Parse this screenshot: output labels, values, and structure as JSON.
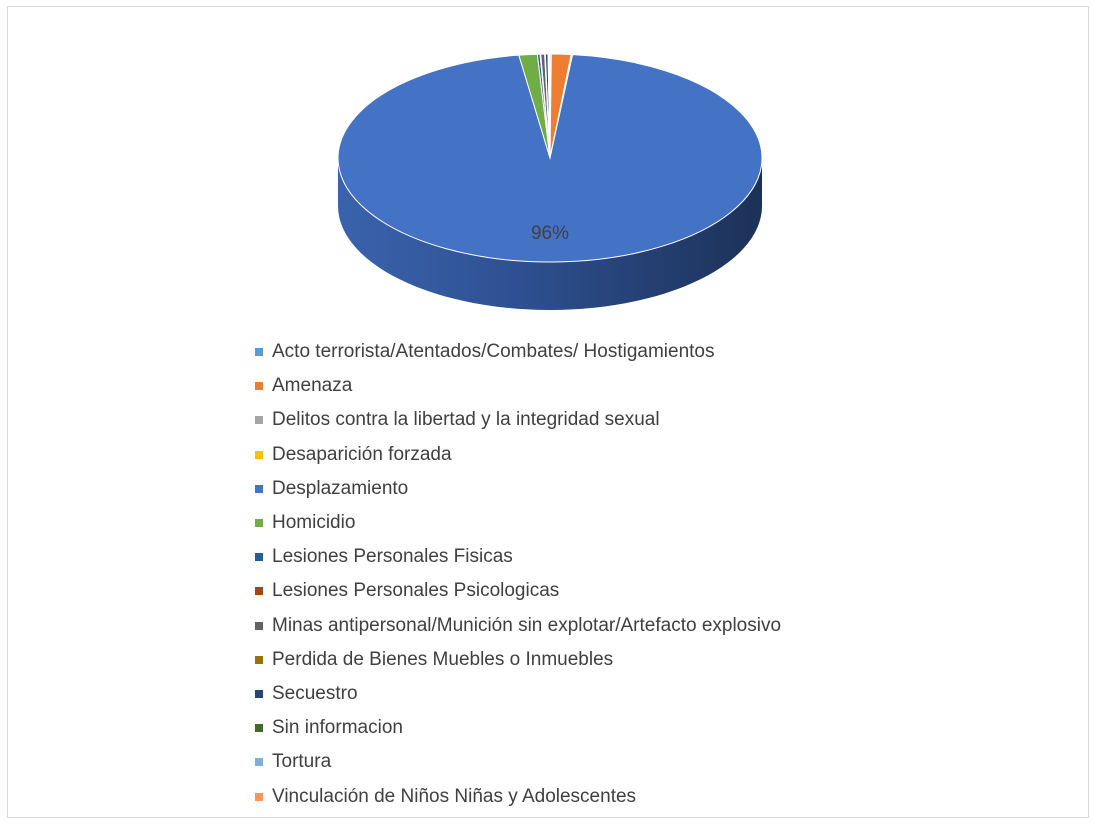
{
  "chart_data": {
    "type": "pie",
    "style": "3d",
    "labels": [
      "Acto terrorista/Atentados/Combates/ Hostigamientos",
      "Amenaza",
      "Delitos contra la libertad y la integridad sexual",
      "Desaparición forzada",
      "Desplazamiento",
      "Homicidio",
      "Lesiones Personales Fisicas",
      "Lesiones Personales Psicologicas",
      "Minas antipersonal/Munición sin explotar/Artefacto explosivo",
      "Perdida de Bienes Muebles o Inmuebles",
      "Secuestro",
      "Sin informacion",
      "Tortura",
      "Vinculación de Niños Niñas y Adolescentes"
    ],
    "values": [
      0.1,
      1.5,
      0.05,
      0.05,
      96,
      1.4,
      0.2,
      0.05,
      0.3,
      0.05,
      0.2,
      0.05,
      0.05,
      0.05
    ],
    "colors": [
      "#5b9bd5",
      "#ed7d31",
      "#a5a5a5",
      "#ffc000",
      "#4472c4",
      "#70ad47",
      "#255e91",
      "#9e480e",
      "#636363",
      "#997300",
      "#264478",
      "#43682b",
      "#7cafdd",
      "#f1975a"
    ],
    "data_labels": [
      "",
      "",
      "",
      "",
      "96%",
      "",
      "",
      "",
      "",
      "",
      "",
      "",
      "",
      ""
    ],
    "legend_position": "bottom"
  }
}
